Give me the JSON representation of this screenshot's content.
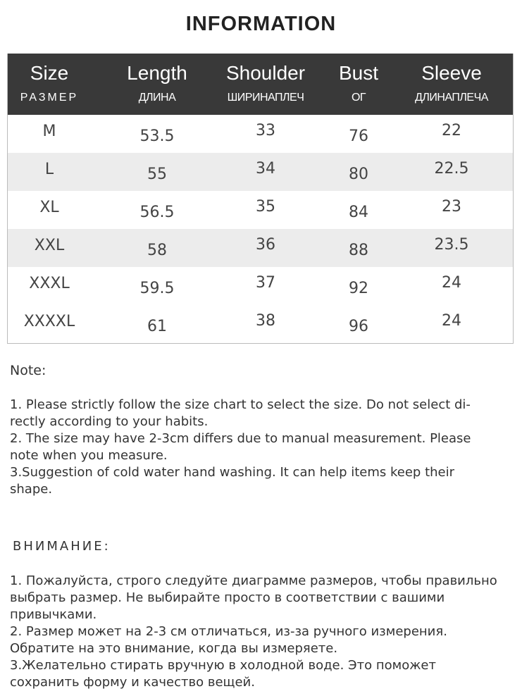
{
  "title": "INFORMATION",
  "table": {
    "headers": [
      {
        "en": "Size",
        "ru": "РАЗМЕР"
      },
      {
        "en": "Length",
        "ru": "ДЛИНА"
      },
      {
        "en": "Shoulder",
        "ru": "ШИРИНАПЛЕЧ"
      },
      {
        "en": "Bust",
        "ru": "ОГ"
      },
      {
        "en": "Sleeve",
        "ru": "ДЛИНАПЛЕЧА"
      }
    ],
    "rows": [
      [
        "M",
        "53.5",
        "33",
        "76",
        "22"
      ],
      [
        "L",
        "55",
        "34",
        "80",
        "22.5"
      ],
      [
        "XL",
        "56.5",
        "35",
        "84",
        "23"
      ],
      [
        "XXL",
        "58",
        "36",
        "88",
        "23.5"
      ],
      [
        "XXXL",
        "59.5",
        "37",
        "92",
        "24"
      ],
      [
        "XXXXL",
        "61",
        "38",
        "96",
        "24"
      ]
    ]
  },
  "note": {
    "heading": "Note:",
    "lines": [
      "1. Please strictly follow the size chart  to select the size. Do not select di-",
      "rectly according to your habits.",
      "2. The size may have 2-3cm differs due to manual measurement. Please",
      "note when you measure.",
      "3.Suggestion of cold water hand washing. It can help items keep their",
      "shape."
    ]
  },
  "note_ru": {
    "heading": "ВНИМАНИЕ:",
    "lines": [
      "1. Пожалуйста, строго следуйте диаграмме размеров, чтобы правильно",
      "выбрать размер. Не выбирайте просто в соответствии с вашими",
      "привычками.",
      "2. Размер может на 2-3 см отличаться, из-за ручного измерения.",
      "Обратите на это внимание, когда вы измеряете.",
      "3.Желательно стирать вручную в холодной воде. Это поможет",
      "сохранить форму и качество вещей."
    ]
  }
}
